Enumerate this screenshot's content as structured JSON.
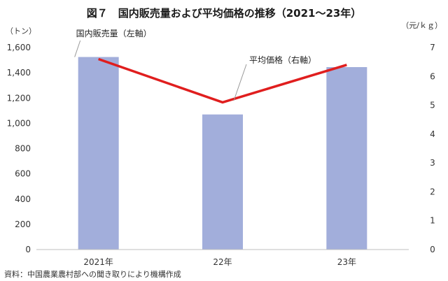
{
  "chart_data": {
    "type": "bar+line",
    "title": "図７　国内販売量および平均価格の推移（2021～23年）",
    "categories": [
      "2021年",
      "22年",
      "23年"
    ],
    "y_left": {
      "unit": "（トン）",
      "range": [
        0,
        1600
      ],
      "ticks": [
        0,
        200,
        400,
        600,
        800,
        1000,
        1200,
        1400,
        1600
      ],
      "tick_labels": [
        "0",
        "200",
        "400",
        "600",
        "800",
        "1,000",
        "1,200",
        "1,400",
        "1,600"
      ]
    },
    "y_right": {
      "unit": "（元/ｋｇ）",
      "range": [
        0,
        7
      ],
      "ticks": [
        0,
        1,
        2,
        3,
        4,
        5,
        6,
        7
      ],
      "tick_labels": [
        "0",
        "1",
        "2",
        "3",
        "4",
        "5",
        "6",
        "7"
      ]
    },
    "series": [
      {
        "name": "国内販売量（左軸）",
        "type": "bar",
        "axis": "left",
        "color": "#a2aedb",
        "values": [
          1525,
          1070,
          1445
        ]
      },
      {
        "name": "平均価格（右軸）",
        "type": "line",
        "axis": "right",
        "color": "#e01e1e",
        "values": [
          6.6,
          5.1,
          6.4
        ]
      }
    ],
    "grid": false,
    "source": "資料：中国農業農村部への聞き取りにより機構作成"
  }
}
